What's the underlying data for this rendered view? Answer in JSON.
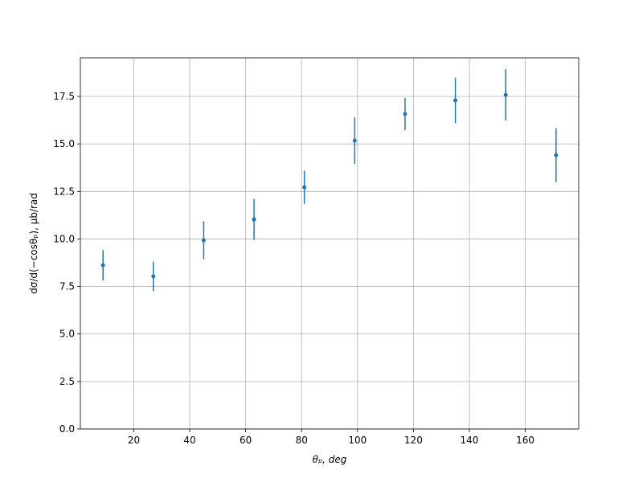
{
  "chart_data": {
    "type": "errorbar",
    "x_label": "θₚ, deg",
    "y_label": "dσ/d(−cosθₚ), μb/rad",
    "x": [
      9,
      27,
      45,
      63,
      81,
      99,
      117,
      135,
      153,
      171
    ],
    "values": [
      8.62,
      8.03,
      9.93,
      11.03,
      12.72,
      15.17,
      16.57,
      17.29,
      17.58,
      14.41
    ],
    "errors": [
      0.8,
      0.78,
      1.0,
      1.08,
      0.87,
      1.23,
      0.85,
      1.2,
      1.35,
      1.42
    ],
    "color": "#1f77b4",
    "xlim": [
      0.9,
      179.1
    ],
    "ylim": [
      0,
      19.53
    ],
    "xticks": [
      20,
      40,
      60,
      80,
      100,
      120,
      140,
      160
    ],
    "yticks": [
      {
        "value": 0,
        "label": "0.0"
      },
      {
        "value": 2.5,
        "label": "2.5"
      },
      {
        "value": 5,
        "label": "5.0"
      },
      {
        "value": 7.5,
        "label": "7.5"
      },
      {
        "value": 10,
        "label": "10.0"
      },
      {
        "value": 12.5,
        "label": "12.5"
      },
      {
        "value": 15,
        "label": "15.0"
      },
      {
        "value": 17.5,
        "label": "17.5"
      }
    ],
    "grid": true
  }
}
